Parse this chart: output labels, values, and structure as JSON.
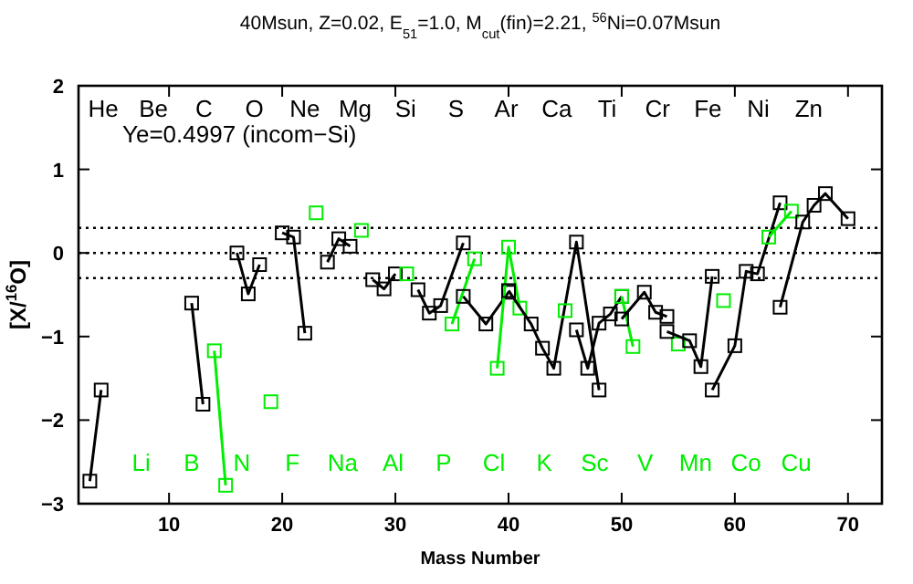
{
  "chart_data": {
    "type": "line",
    "title": "40Msun, Z=0.02, E$_{51}$=1.0, M$_{cut}$(fin)=2.21, $^{56}$Ni=0.07Msun",
    "xlabel": "Mass Number",
    "ylabel": "[X/$^{16}$O]",
    "xlim": [
      2,
      73
    ],
    "xticks": [
      10,
      20,
      30,
      40,
      50,
      60,
      70
    ],
    "ylim": [
      -3,
      2
    ],
    "yticks": [
      -3,
      -2,
      -1,
      0,
      1,
      2
    ],
    "marker": "square",
    "line_style": "solid",
    "grid": false,
    "ref_lines": [
      {
        "axis": "y",
        "value": 0.3,
        "line_style": "dotted"
      },
      {
        "axis": "y",
        "value": 0,
        "line_style": "dotted"
      },
      {
        "axis": "y",
        "value": -0.3,
        "line_style": "dotted"
      }
    ],
    "series": [
      {
        "color": "#000000",
        "x": [
          3,
          4
        ],
        "values": [
          -2.73,
          -1.64
        ]
      },
      {
        "color": "#000000",
        "x": [
          12,
          13
        ],
        "values": [
          -0.6,
          -1.81
        ]
      },
      {
        "color": "#00ee00",
        "x": [
          14,
          15
        ],
        "values": [
          -1.17,
          -2.78
        ]
      },
      {
        "color": "#000000",
        "x": [
          16,
          17,
          18
        ],
        "values": [
          0.0,
          -0.49,
          -0.14
        ]
      },
      {
        "color": "#00ee00",
        "x": [
          19
        ],
        "values": [
          -1.78
        ]
      },
      {
        "color": "#000000",
        "x": [
          20,
          21,
          22
        ],
        "values": [
          0.24,
          0.19,
          -0.96
        ]
      },
      {
        "color": "#00ee00",
        "x": [
          23
        ],
        "values": [
          0.48
        ]
      },
      {
        "color": "#000000",
        "x": [
          24,
          25,
          26
        ],
        "values": [
          -0.11,
          0.17,
          0.08
        ]
      },
      {
        "color": "#00ee00",
        "x": [
          27
        ],
        "values": [
          0.27
        ]
      },
      {
        "color": "#000000",
        "x": [
          28,
          29,
          30
        ],
        "values": [
          -0.32,
          -0.43,
          -0.25
        ]
      },
      {
        "color": "#00ee00",
        "x": [
          31
        ],
        "values": [
          -0.25
        ]
      },
      {
        "color": "#000000",
        "x": [
          32,
          33,
          34,
          36
        ],
        "values": [
          -0.44,
          -0.72,
          -0.63,
          0.12
        ]
      },
      {
        "color": "#00ee00",
        "x": [
          35,
          37
        ],
        "values": [
          -0.85,
          -0.07
        ]
      },
      {
        "color": "#000000",
        "x": [
          36,
          38,
          40
        ],
        "values": [
          -0.52,
          -0.85,
          -0.47
        ]
      },
      {
        "color": "#00ee00",
        "x": [
          39,
          40,
          41
        ],
        "values": [
          -1.38,
          0.07,
          -0.66
        ]
      },
      {
        "color": "#000000",
        "x": [
          40,
          42,
          43,
          44,
          46,
          48
        ],
        "values": [
          -0.45,
          -0.85,
          -1.14,
          -1.38,
          0.13,
          -1.64
        ]
      },
      {
        "color": "#00ee00",
        "x": [
          45
        ],
        "values": [
          -0.69
        ]
      },
      {
        "color": "#000000",
        "x": [
          46,
          47,
          48,
          49,
          50
        ],
        "values": [
          -0.92,
          -1.38,
          -0.84,
          -0.73,
          -0.52
        ]
      },
      {
        "color": "#00ee00",
        "x": [
          50,
          51
        ],
        "values": [
          -0.52,
          -1.12
        ]
      },
      {
        "color": "#000000",
        "x": [
          50,
          52,
          53,
          54
        ],
        "values": [
          -0.79,
          -0.47,
          -0.71,
          -0.76
        ]
      },
      {
        "color": "#00ee00",
        "x": [
          55
        ],
        "values": [
          -1.09
        ]
      },
      {
        "color": "#000000",
        "x": [
          54,
          56,
          57,
          58
        ],
        "values": [
          -0.94,
          -1.05,
          -1.36,
          -0.28
        ]
      },
      {
        "color": "#00ee00",
        "x": [
          59
        ],
        "values": [
          -0.57
        ]
      },
      {
        "color": "#000000",
        "x": [
          58,
          60,
          61,
          62,
          64
        ],
        "values": [
          -1.64,
          -1.11,
          -0.22,
          -0.25,
          0.6
        ]
      },
      {
        "color": "#00ee00",
        "x": [
          63,
          65
        ],
        "values": [
          0.19,
          0.5
        ]
      },
      {
        "color": "#000000",
        "x": [
          64,
          66,
          67,
          68,
          70
        ],
        "values": [
          -0.65,
          0.37,
          0.57,
          0.71,
          0.41
        ]
      }
    ],
    "annotations": [
      "Ye=0.4997 (incom−Si)",
      "He",
      "Li",
      "Be",
      "B",
      "C",
      "N",
      "O",
      "F",
      "Ne",
      "Na",
      "Mg",
      "Al",
      "Si",
      "P",
      "S",
      "Cl",
      "Ar",
      "K",
      "Ca",
      "Sc",
      "Ti",
      "V",
      "Cr",
      "Mn",
      "Fe",
      "Co",
      "Ni",
      "Cu",
      "Zn"
    ]
  }
}
